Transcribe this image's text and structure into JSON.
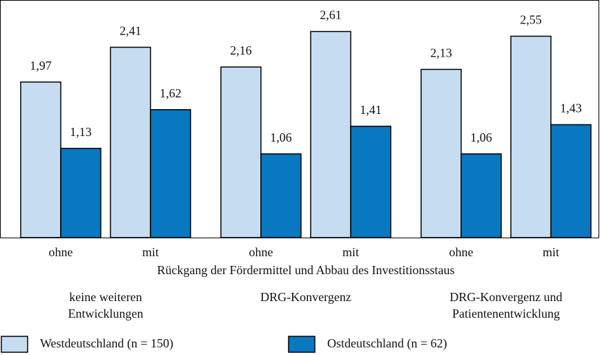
{
  "chart_data": {
    "type": "bar",
    "categories": [
      "ohne",
      "mit",
      "ohne",
      "mit",
      "ohne",
      "mit"
    ],
    "series": [
      {
        "name": "Westdeutschland (n = 150)",
        "color": "#c6ddf1",
        "values": [
          1.97,
          2.41,
          2.16,
          2.61,
          2.13,
          2.55
        ],
        "value_labels": [
          "1,97",
          "2,41",
          "2,16",
          "2,61",
          "2,13",
          "2,55"
        ]
      },
      {
        "name": "Ostdeutschland (n = 62)",
        "color": "#0878c1",
        "values": [
          1.13,
          1.62,
          1.06,
          1.41,
          1.06,
          1.43
        ],
        "value_labels": [
          "1,13",
          "1,62",
          "1,06",
          "1,41",
          "1,06",
          "1,43"
        ]
      }
    ],
    "x_label": "Rückgang der Fördermittel und Abbau des Investitionsstaus",
    "group_labels": [
      [
        "keine weiteren",
        "Entwicklungen"
      ],
      [
        "DRG-Konvergenz"
      ],
      [
        "DRG-Konvergenz und",
        "Patientenentwicklung"
      ]
    ],
    "ylim": [
      0,
      3
    ]
  }
}
